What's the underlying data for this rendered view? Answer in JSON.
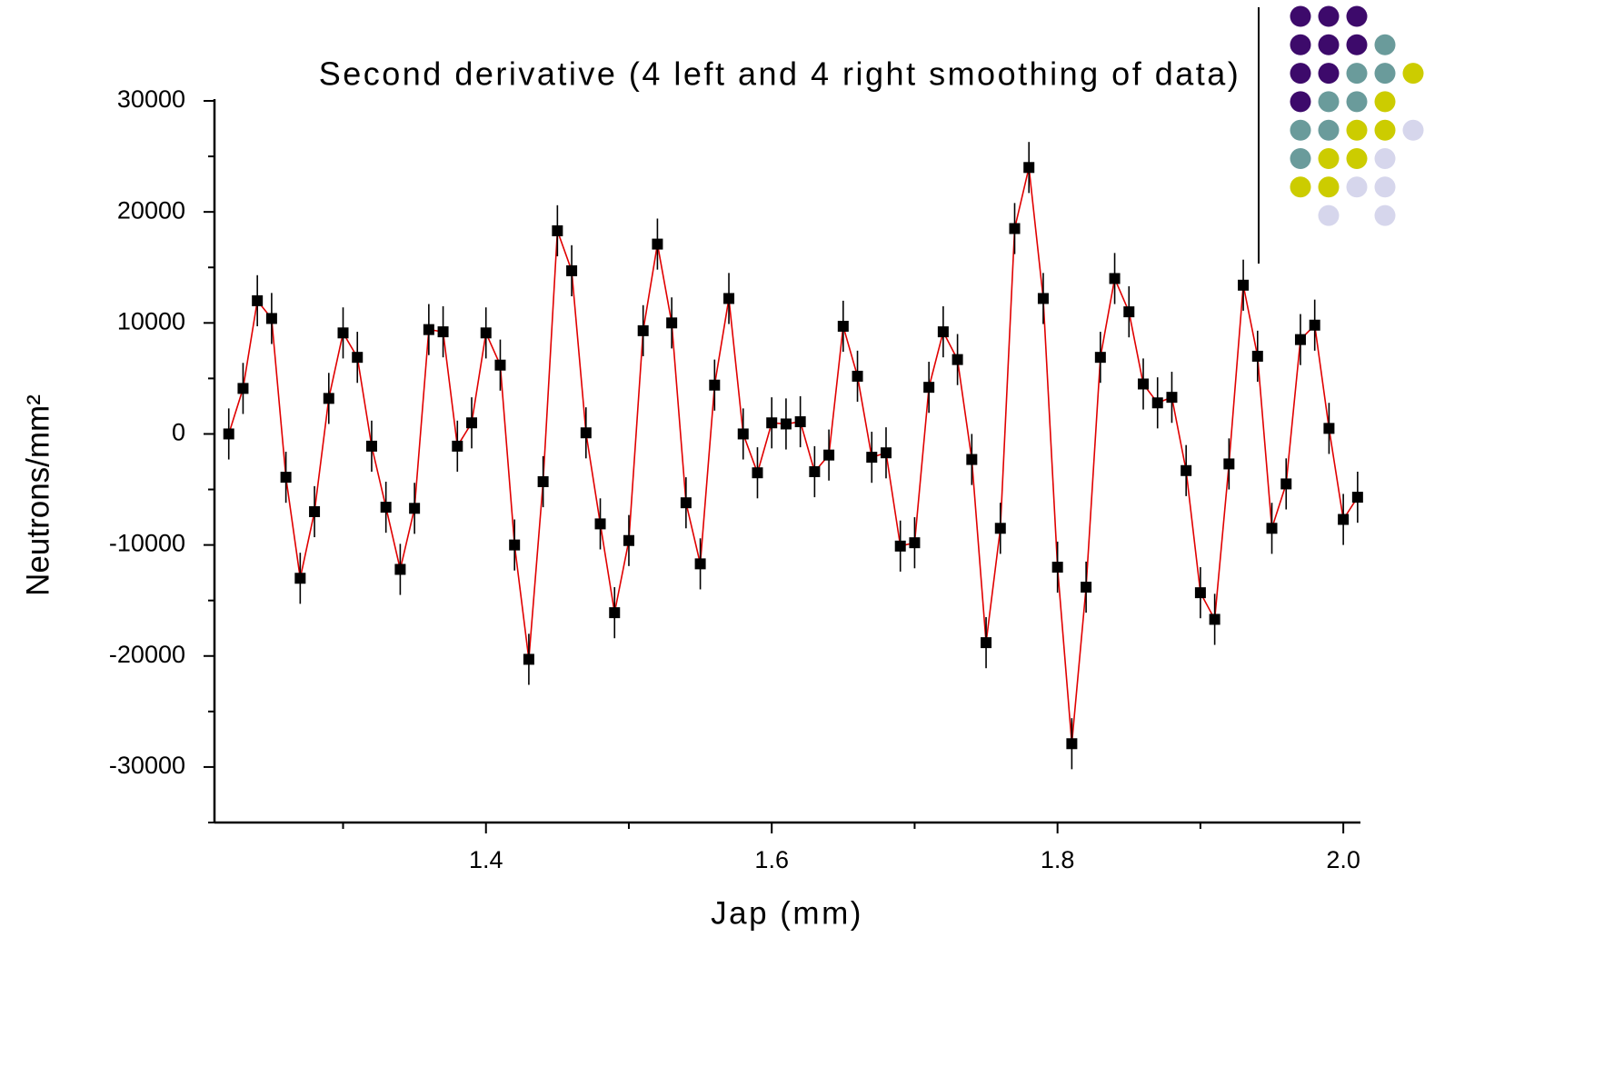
{
  "chart_data": {
    "type": "line",
    "title": "Second derivative (4 left and 4 right smoothing of data)",
    "x_label": "Jap (mm)",
    "y_label": "Neutrons/mm²",
    "x": [
      1.22,
      1.23,
      1.24,
      1.25,
      1.26,
      1.27,
      1.28,
      1.29,
      1.3,
      1.31,
      1.32,
      1.33,
      1.34,
      1.35,
      1.36,
      1.37,
      1.38,
      1.39,
      1.4,
      1.41,
      1.42,
      1.43,
      1.44,
      1.45,
      1.46,
      1.47,
      1.48,
      1.49,
      1.5,
      1.51,
      1.52,
      1.53,
      1.54,
      1.55,
      1.56,
      1.57,
      1.58,
      1.59,
      1.6,
      1.61,
      1.62,
      1.63,
      1.64,
      1.65,
      1.66,
      1.67,
      1.68,
      1.69,
      1.7,
      1.71,
      1.72,
      1.73,
      1.74,
      1.75,
      1.76,
      1.77,
      1.78,
      1.79,
      1.8,
      1.81,
      1.82,
      1.83,
      1.84,
      1.85,
      1.86,
      1.87,
      1.88,
      1.89,
      1.9,
      1.91,
      1.92,
      1.93,
      1.94,
      1.95,
      1.96,
      1.97,
      1.98,
      1.99,
      2.0,
      2.01
    ],
    "series": [
      {
        "color": "#e00000",
        "marker_color": "#000000",
        "values": [
          0,
          4100,
          12000,
          10400,
          -3900,
          -13000,
          -7000,
          3200,
          9100,
          6900,
          -1100,
          -6600,
          -12200,
          -6700,
          9400,
          9200,
          -1100,
          1000,
          9100,
          6200,
          -10000,
          -20300,
          -4300,
          18300,
          14700,
          100,
          -8100,
          -16100,
          -9600,
          9300,
          17100,
          10000,
          -6200,
          -11700,
          4400,
          12200,
          0,
          -3500,
          1000,
          900,
          1100,
          -3400,
          -1900,
          9700,
          5200,
          -2100,
          -1700,
          -10100,
          -9800,
          4200,
          9200,
          6700,
          -2300,
          -18800,
          -8500,
          18500,
          24000,
          12200,
          -12000,
          -27900,
          -13800,
          6900,
          14000,
          11000,
          4500,
          2800,
          3300,
          -3300,
          -14300,
          -16700,
          -2700,
          13400,
          7000,
          -8500,
          -4500,
          8500,
          9800,
          500,
          -7700,
          -5700
        ]
      }
    ],
    "error": 2300,
    "xlim": [
      1.21,
      2.012
    ],
    "ylim": [
      -35000,
      30000
    ],
    "xticks": [
      1.4,
      1.6,
      1.8,
      {
        "value": 2,
        "label": "2.0"
      }
    ],
    "xminorticks": [
      1.3,
      1.5,
      1.7,
      1.9
    ],
    "yticks": [
      -30000,
      -20000,
      -10000,
      0,
      10000,
      20000,
      30000
    ],
    "yminorticks": [
      -35000,
      -25000,
      -15000,
      -5000,
      5000,
      15000,
      25000
    ]
  }
}
